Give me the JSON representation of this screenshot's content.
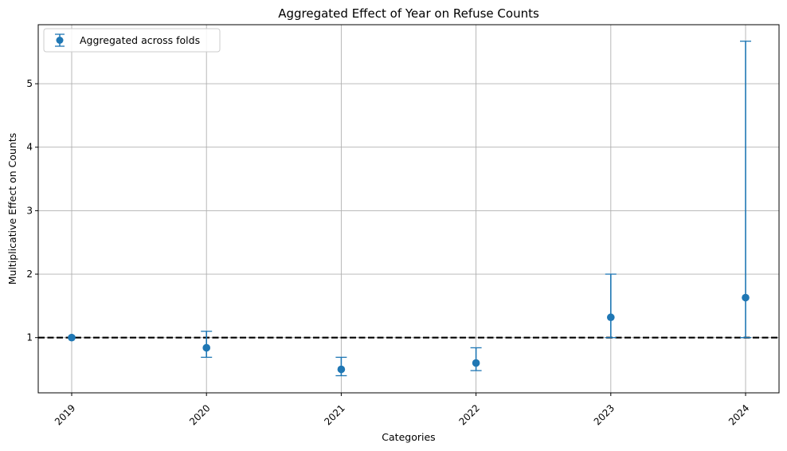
{
  "chart_data": {
    "type": "scatter",
    "title": "Aggregated Effect of Year on Refuse Counts",
    "xlabel": "Categories",
    "ylabel": "Multiplicative Effect on Counts",
    "categories": [
      "2019",
      "2020",
      "2021",
      "2022",
      "2023",
      "2024"
    ],
    "series": [
      {
        "name": "Aggregated across folds",
        "values": [
          1.0,
          0.84,
          0.5,
          0.6,
          1.32,
          1.63
        ],
        "lower": [
          1.0,
          0.69,
          0.4,
          0.48,
          1.0,
          1.0
        ],
        "upper": [
          1.0,
          1.1,
          0.69,
          0.84,
          2.0,
          5.67
        ],
        "color": "#1f77b4"
      }
    ],
    "reference_line": {
      "y": 1,
      "style": "dashed",
      "color": "#000000"
    },
    "ylim": [
      0.13,
      5.93
    ],
    "yticks": [
      1,
      2,
      3,
      4,
      5
    ],
    "grid": true,
    "legend": "top-left",
    "xtick_rotation": 45
  }
}
